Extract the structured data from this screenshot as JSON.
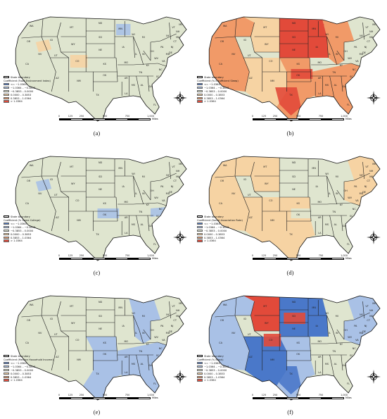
{
  "legend_boundary_label": "State boundary",
  "classes": [
    {
      "label": "<= −1.0364",
      "color": "#4a78c9"
    },
    {
      "label": "−1.0364 – −0.3853",
      "color": "#a9c1e6"
    },
    {
      "label": "−0.3853 – 0.0000",
      "color": "#dfe5cf"
    },
    {
      "label": "0.0000 – 0.3853",
      "color": "#f6d3a3"
    },
    {
      "label": "0.3853 – 1.0364",
      "color": "#f19a68"
    },
    {
      "label": "> 1.0364",
      "color": "#e24a3a"
    }
  ],
  "scale": {
    "ticks": [
      "0",
      "125",
      "250",
      "500",
      "750",
      "1,000"
    ],
    "unit": "Miles"
  },
  "state_labels": [
    "WA",
    "OR",
    "CA",
    "NV",
    "ID",
    "MT",
    "WY",
    "UT",
    "AZ",
    "CO",
    "NM",
    "ND",
    "SD",
    "NE",
    "KS",
    "OK",
    "TX",
    "MN",
    "IA",
    "MO",
    "AR",
    "LA",
    "WI",
    "IL",
    "MI",
    "IN",
    "OH",
    "KY",
    "TN",
    "MS",
    "AL",
    "GA",
    "FL",
    "SC",
    "NC",
    "VA",
    "WV",
    "PA",
    "NY",
    "ME",
    "VT",
    "NH",
    "MA",
    "CT",
    "NJ",
    "DE",
    "MD"
  ],
  "panels": [
    {
      "id": "a",
      "caption": "(a)",
      "legend_title": "Coefficient (Food Environment Index)",
      "overlay": {
        "ww": "#dfe5cf",
        "nw": "#dfe5cf",
        "np": "#dfe5cf",
        "sw": "#dfe5cf",
        "sc": "#dfe5cf",
        "mw": "#dfe5cf",
        "se": "#dfe5cf",
        "ne": "#dfe5cf",
        "spots": [
          {
            "r": "ww2",
            "c": "#f6d3a3"
          },
          {
            "r": "co",
            "c": "#f6d3a3"
          },
          {
            "r": "mn1",
            "c": "#a9c1e6"
          }
        ]
      }
    },
    {
      "id": "b",
      "caption": "(b)",
      "legend_title": "Coefficient (% Insufficient Sleep)",
      "overlay": {
        "ww": "#f19a68",
        "nw": "#f6d3a3",
        "np": "#e24a3a",
        "sw": "#f6d3a3",
        "sc": "#f19a68",
        "mw": "#f19a68",
        "se": "#f19a68",
        "ne": "#dfe5cf",
        "spots": [
          {
            "r": "tx",
            "c": "#e24a3a"
          },
          {
            "r": "mn1",
            "c": "#e24a3a"
          },
          {
            "r": "ok",
            "c": "#e24a3a"
          }
        ]
      }
    },
    {
      "id": "c",
      "caption": "(c)",
      "legend_title": "Coefficient (% Some College)",
      "overlay": {
        "ww": "#dfe5cf",
        "nw": "#dfe5cf",
        "np": "#dfe5cf",
        "sw": "#dfe5cf",
        "sc": "#dfe5cf",
        "mw": "#dfe5cf",
        "se": "#dfe5cf",
        "ne": "#dfe5cf",
        "spots": [
          {
            "r": "ok",
            "c": "#a9c1e6"
          },
          {
            "r": "ww2",
            "c": "#a9c1e6"
          },
          {
            "r": "nc",
            "c": "#a9c1e6"
          }
        ]
      }
    },
    {
      "id": "d",
      "caption": "(d)",
      "legend_title": "Coefficient (Social Association Rate)",
      "overlay": {
        "ww": "#f6d3a3",
        "nw": "#f6d3a3",
        "np": "#dfe5cf",
        "sw": "#f6d3a3",
        "sc": "#f6d3a3",
        "mw": "#dfe5cf",
        "se": "#dfe5cf",
        "ne": "#f6d3a3",
        "spots": [
          {
            "r": "ok",
            "c": "#dfe5cf"
          }
        ]
      }
    },
    {
      "id": "e",
      "caption": "(e)",
      "legend_title": "Coefficient (Median Household Income)",
      "overlay": {
        "ww": "#dfe5cf",
        "nw": "#dfe5cf",
        "np": "#dfe5cf",
        "sw": "#dfe5cf",
        "sc": "#a9c1e6",
        "mw": "#a9c1e6",
        "se": "#a9c1e6",
        "ne": "#dfe5cf",
        "spots": [
          {
            "r": "fl",
            "c": "#a9c1e6"
          }
        ]
      }
    },
    {
      "id": "f",
      "caption": "(f)",
      "legend_title": "Coefficient (% Black)",
      "overlay": {
        "ww": "#a9c1e6",
        "nw": "#e24a3a",
        "np": "#4a78c9",
        "sw": "#4a78c9",
        "sc": "#a9c1e6",
        "mw": "#dfe5cf",
        "se": "#dfe5cf",
        "ne": "#a9c1e6",
        "spots": [
          {
            "r": "tx",
            "c": "#4a78c9"
          },
          {
            "r": "co",
            "c": "#e24a3a"
          },
          {
            "r": "sd",
            "c": "#e24a3a"
          }
        ]
      }
    }
  ]
}
